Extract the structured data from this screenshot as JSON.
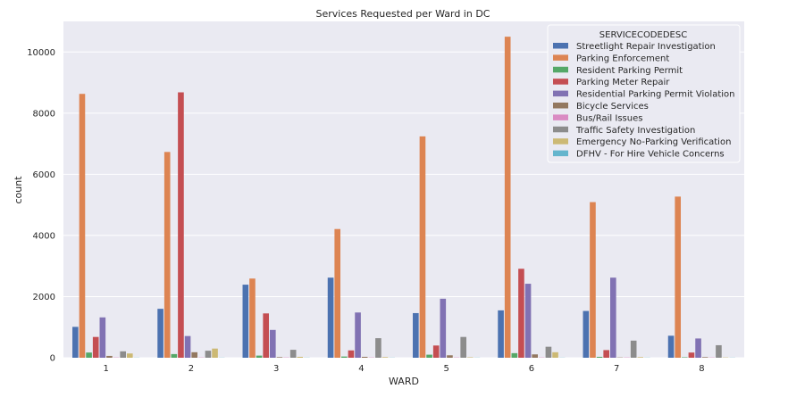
{
  "chart_data": {
    "type": "bar",
    "title": "Services Requested per Ward in DC",
    "xlabel": "WARD",
    "ylabel": "count",
    "categories": [
      "1",
      "2",
      "3",
      "4",
      "5",
      "6",
      "7",
      "8"
    ],
    "ylim": [
      0,
      11000
    ],
    "yticks": [
      0,
      2000,
      4000,
      6000,
      8000,
      10000
    ],
    "grid": true,
    "legend_title": "SERVICECODEDESC",
    "legend_position": "top-right",
    "series": [
      {
        "name": "Streetlight Repair Investigation",
        "color": "#4c72b0",
        "values": [
          1010,
          1600,
          2390,
          2620,
          1460,
          1550,
          1530,
          720
        ]
      },
      {
        "name": "Parking Enforcement",
        "color": "#dd8452",
        "values": [
          8630,
          6730,
          2590,
          4210,
          7240,
          10500,
          5090,
          5270
        ]
      },
      {
        "name": "Resident Parking Permit",
        "color": "#55a868",
        "values": [
          170,
          120,
          70,
          40,
          100,
          150,
          30,
          15
        ]
      },
      {
        "name": "Parking Meter Repair",
        "color": "#c44e52",
        "values": [
          680,
          8680,
          1450,
          240,
          400,
          2910,
          250,
          170
        ]
      },
      {
        "name": "Residential Parking Permit Violation",
        "color": "#8172b3",
        "values": [
          1320,
          710,
          910,
          1480,
          1930,
          2420,
          2620,
          630
        ]
      },
      {
        "name": "Bicycle Services",
        "color": "#937860",
        "values": [
          60,
          180,
          20,
          30,
          80,
          110,
          10,
          20
        ]
      },
      {
        "name": "Bus/Rail Issues",
        "color": "#da8bc3",
        "values": [
          10,
          10,
          10,
          10,
          10,
          10,
          10,
          10
        ]
      },
      {
        "name": "Traffic Safety Investigation",
        "color": "#8c8c8c",
        "values": [
          210,
          230,
          260,
          640,
          680,
          360,
          560,
          410
        ]
      },
      {
        "name": "Emergency No-Parking Verification",
        "color": "#ccb974",
        "values": [
          140,
          300,
          30,
          20,
          15,
          180,
          20,
          10
        ]
      },
      {
        "name": "DFHV - For Hire Vehicle Concerns",
        "color": "#64b5cd",
        "values": [
          5,
          5,
          5,
          5,
          5,
          5,
          5,
          5
        ]
      }
    ]
  }
}
